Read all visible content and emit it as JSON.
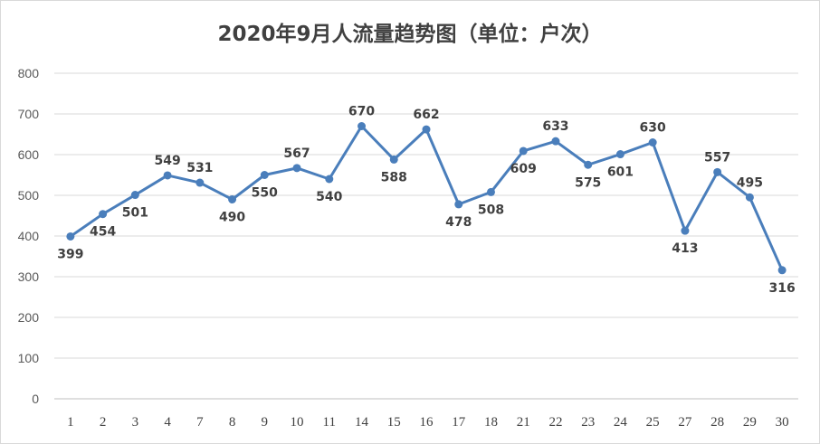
{
  "chart_data": {
    "type": "line",
    "title": "2020年9月人流量趋势图（单位：户次）",
    "xlabel": "",
    "ylabel": "",
    "ylim": [
      0,
      800
    ],
    "yticks": [
      0,
      100,
      200,
      300,
      400,
      500,
      600,
      700,
      800
    ],
    "grid": true,
    "legend": "none",
    "categories": [
      "1",
      "2",
      "3",
      "4",
      "7",
      "8",
      "9",
      "10",
      "11",
      "14",
      "15",
      "16",
      "17",
      "18",
      "21",
      "22",
      "23",
      "24",
      "25",
      "27",
      "28",
      "29",
      "30"
    ],
    "series": [
      {
        "values": [
          399,
          454,
          501,
          549,
          531,
          490,
          550,
          567,
          540,
          670,
          588,
          662,
          478,
          508,
          609,
          633,
          575,
          601,
          630,
          413,
          557,
          495,
          316
        ],
        "color": "#4a7ebb"
      }
    ]
  }
}
